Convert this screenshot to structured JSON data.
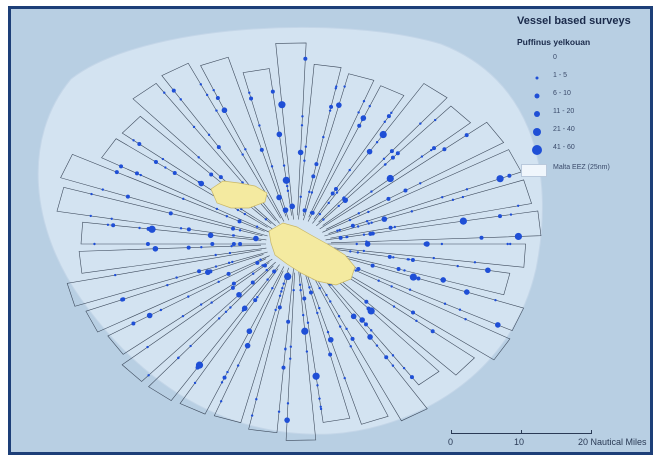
{
  "map": {
    "colors": {
      "sea": "#b8cfe3",
      "eez": "#d3e3f1",
      "island": "#f4eaa0",
      "transect": "#3d4a5c",
      "sighting": "#1f4fd6"
    },
    "islands": [
      "gozo-island",
      "malta-island"
    ]
  },
  "legend": {
    "title": "Vessel based surveys",
    "species": "Puffinus yelkouan",
    "classes": [
      {
        "label": "0",
        "symbol_size": 0
      },
      {
        "label": "1 - 5",
        "symbol_size": 2
      },
      {
        "label": "6 - 10",
        "symbol_size": 3
      },
      {
        "label": "11 - 20",
        "symbol_size": 4
      },
      {
        "label": "21 - 40",
        "symbol_size": 5
      },
      {
        "label": "41 - 60",
        "symbol_size": 6
      }
    ],
    "eez_label": "Malta EEZ (25nm)"
  },
  "scalebar": {
    "labels": [
      "0",
      "10",
      "20 Nautical Miles"
    ]
  }
}
